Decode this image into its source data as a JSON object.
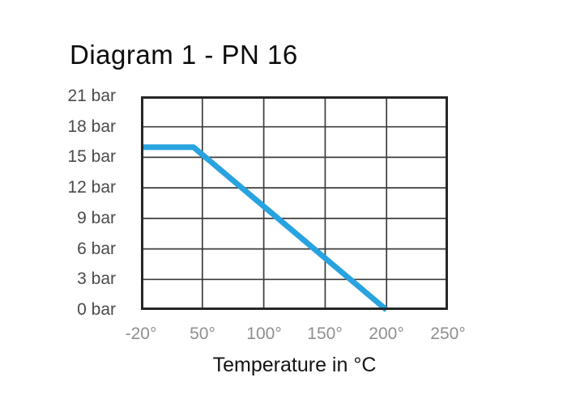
{
  "chart_data": {
    "type": "line",
    "title": "Diagram 1 - PN 16",
    "xlabel": "Temperature in °C",
    "ylabel": "",
    "x_tick_labels": [
      "-20°",
      "50°",
      "100°",
      "150°",
      "200°",
      "250°"
    ],
    "x_tick_values": [
      -20,
      50,
      100,
      150,
      200,
      250
    ],
    "y_tick_labels": [
      "21 bar",
      "18 bar",
      "15 bar",
      "12 bar",
      "9 bar",
      "6 bar",
      "3 bar",
      "0 bar"
    ],
    "y_tick_values": [
      21,
      18,
      15,
      12,
      9,
      6,
      3,
      0
    ],
    "ylim": [
      0,
      21
    ],
    "grid": true,
    "legend": false,
    "axis_layout_note": "x ticks equally spaced in pixels although first interval spans 70 °C and the rest 50 °C each",
    "colors": {
      "line": "#29a3df",
      "grid": "#3d3d3d",
      "border": "#262626"
    },
    "series": [
      {
        "color": "#29a3df",
        "stroke_width": 7,
        "points": [
          [
            -20,
            16
          ],
          [
            40,
            16
          ],
          [
            200,
            0
          ]
        ]
      }
    ]
  }
}
